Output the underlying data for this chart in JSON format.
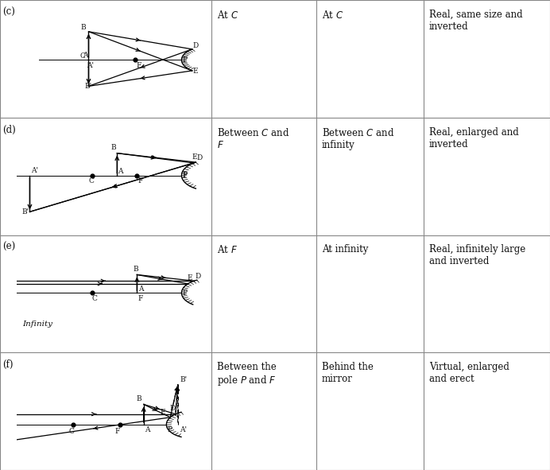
{
  "bg_color": "#ffffff",
  "lc": "#888888",
  "rows": [
    {
      "label": "(c)",
      "col2": [
        "At ",
        "C"
      ],
      "col3": [
        "At ",
        "C"
      ],
      "col4": "Real, same size and\ninverted"
    },
    {
      "label": "(d)",
      "col2": [
        "Between ",
        "C",
        " and\n",
        "F"
      ],
      "col3": [
        "Between ",
        "C",
        " and\ninfinity"
      ],
      "col4": "Real, enlarged and\ninverted"
    },
    {
      "label": "(e)",
      "col2": [
        "At ",
        "F"
      ],
      "col3": "At infinity",
      "col4": "Real, infinitely large\nand inverted"
    },
    {
      "label": "(f)",
      "col2": [
        "Between the\npole ",
        "P",
        " and ",
        "F"
      ],
      "col3": [
        "Behind the\nmirror"
      ],
      "col4": "Virtual, enlarged\nand erect"
    }
  ]
}
